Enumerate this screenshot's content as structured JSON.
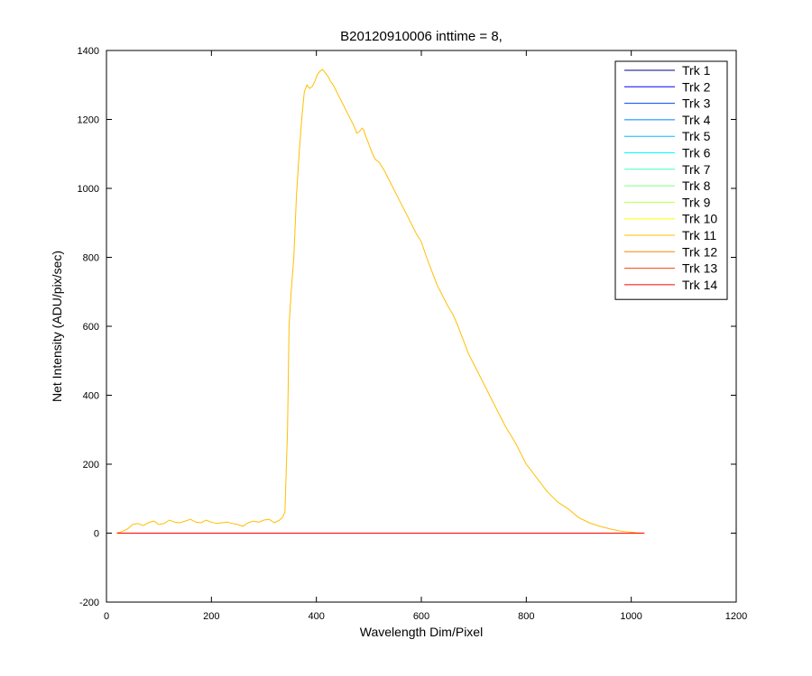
{
  "chart_data": {
    "type": "line",
    "title": "B20120910006 inttime = 8,",
    "xlabel": "Wavelength Dim/Pixel",
    "ylabel": "Net Intensity (ADU/pix/sec)",
    "xlim": [
      0,
      1200
    ],
    "ylim": [
      -200,
      1400
    ],
    "xticks": [
      0,
      200,
      400,
      600,
      800,
      1000,
      1200
    ],
    "yticks": [
      -200,
      0,
      200,
      400,
      600,
      800,
      1000,
      1200,
      1400
    ],
    "grid": false,
    "legend_position": "top-right",
    "series": [
      {
        "name": "Trk 1",
        "color": "#00008f",
        "x": [
          20,
          1025
        ],
        "y": [
          0,
          0
        ]
      },
      {
        "name": "Trk 2",
        "color": "#0000ff",
        "x": [
          20,
          1025
        ],
        "y": [
          0,
          0
        ]
      },
      {
        "name": "Trk 3",
        "color": "#0040ff",
        "x": [
          20,
          1025
        ],
        "y": [
          0,
          0
        ]
      },
      {
        "name": "Trk 4",
        "color": "#0080ff",
        "x": [
          20,
          1025
        ],
        "y": [
          0,
          0
        ]
      },
      {
        "name": "Trk 5",
        "color": "#00bfff",
        "x": [
          20,
          1025
        ],
        "y": [
          0,
          0
        ]
      },
      {
        "name": "Trk 6",
        "color": "#00ffff",
        "x": [
          20,
          1025
        ],
        "y": [
          0,
          0
        ]
      },
      {
        "name": "Trk 7",
        "color": "#40ffbf",
        "x": [
          20,
          1025
        ],
        "y": [
          0,
          0
        ]
      },
      {
        "name": "Trk 8",
        "color": "#80ff80",
        "x": [
          20,
          1025
        ],
        "y": [
          0,
          0
        ]
      },
      {
        "name": "Trk 9",
        "color": "#bfff40",
        "x": [
          20,
          1025
        ],
        "y": [
          0,
          0
        ]
      },
      {
        "name": "Trk 10",
        "color": "#ffff00",
        "x": [
          20,
          1025
        ],
        "y": [
          0,
          0
        ]
      },
      {
        "name": "Trk 11",
        "color": "#ffbf00",
        "x": [
          20,
          30,
          40,
          50,
          60,
          70,
          80,
          90,
          100,
          110,
          120,
          130,
          140,
          150,
          160,
          170,
          180,
          190,
          200,
          210,
          220,
          230,
          240,
          250,
          260,
          270,
          280,
          290,
          300,
          310,
          320,
          330,
          335,
          340,
          345,
          348,
          352,
          357,
          362,
          367,
          372,
          377,
          382,
          387,
          392,
          397,
          402,
          407,
          412,
          417,
          422,
          427,
          432,
          437,
          442,
          447,
          452,
          457,
          462,
          467,
          472,
          477,
          482,
          487,
          490,
          493,
          497,
          502,
          507,
          512,
          520,
          530,
          540,
          550,
          560,
          570,
          580,
          590,
          600,
          610,
          620,
          630,
          640,
          650,
          660,
          670,
          680,
          690,
          700,
          720,
          740,
          760,
          780,
          800,
          810,
          820,
          830,
          840,
          850,
          860,
          880,
          900,
          920,
          940,
          960,
          980,
          1000,
          1010,
          1020,
          1025
        ],
        "y": [
          0,
          5,
          12,
          25,
          28,
          22,
          30,
          35,
          25,
          28,
          38,
          32,
          30,
          35,
          40,
          32,
          30,
          38,
          32,
          28,
          30,
          32,
          28,
          25,
          20,
          30,
          35,
          32,
          38,
          40,
          30,
          38,
          45,
          60,
          300,
          600,
          700,
          800,
          980,
          1100,
          1200,
          1280,
          1300,
          1290,
          1295,
          1310,
          1330,
          1340,
          1345,
          1335,
          1325,
          1310,
          1300,
          1285,
          1270,
          1255,
          1240,
          1225,
          1210,
          1195,
          1180,
          1160,
          1165,
          1175,
          1170,
          1155,
          1140,
          1120,
          1100,
          1085,
          1075,
          1050,
          1020,
          990,
          960,
          930,
          900,
          870,
          845,
          800,
          760,
          720,
          690,
          660,
          635,
          600,
          560,
          520,
          490,
          430,
          370,
          310,
          260,
          200,
          180,
          160,
          140,
          120,
          105,
          90,
          70,
          45,
          30,
          20,
          12,
          6,
          3,
          1,
          0,
          0
        ]
      },
      {
        "name": "Trk 12",
        "color": "#ff8000",
        "x": [
          20,
          1025
        ],
        "y": [
          0,
          0
        ]
      },
      {
        "name": "Trk 13",
        "color": "#ff4000",
        "x": [
          20,
          1025
        ],
        "y": [
          0,
          0
        ]
      },
      {
        "name": "Trk 14",
        "color": "#ff0000",
        "x": [
          20,
          1025
        ],
        "y": [
          0,
          0
        ]
      }
    ]
  }
}
